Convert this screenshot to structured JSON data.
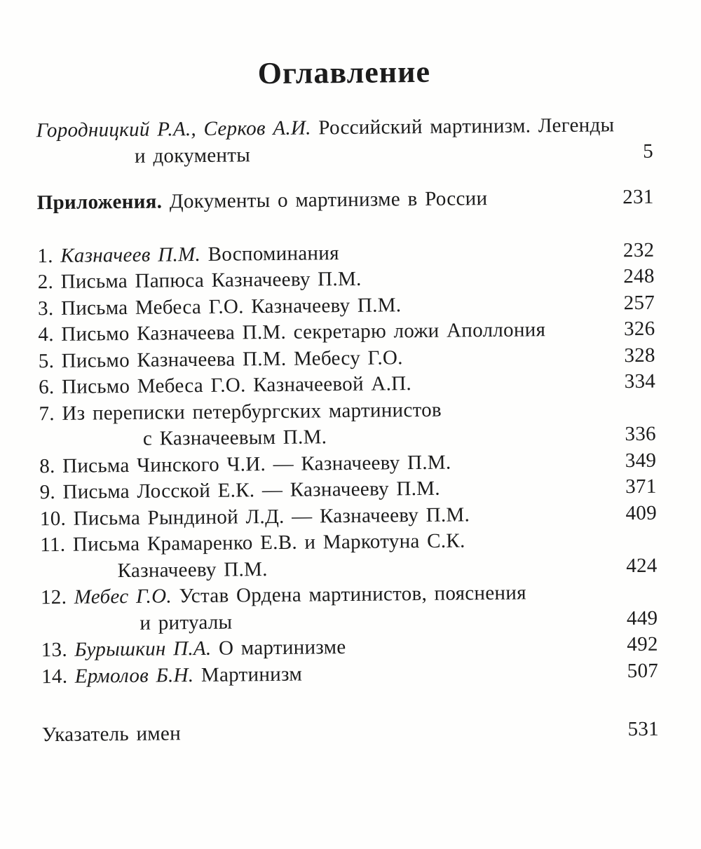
{
  "colors": {
    "ink": "#1c1c1c",
    "paper": "#fefefd"
  },
  "toc": {
    "title": "Оглавление",
    "entries": [
      {
        "lines": [
          {
            "segments": [
              {
                "t": "Городницкий Р.А., Серков А.И.",
                "s": "i"
              },
              {
                "t": " Российский мартинизм. Легенды",
                "s": "n"
              }
            ],
            "indent": 0,
            "page": ""
          },
          {
            "segments": [
              {
                "t": "и документы",
                "s": "n"
              }
            ],
            "indent": 140,
            "page": "5"
          }
        ]
      },
      {
        "lines": [
          {
            "segments": [
              {
                "t": "Приложения.",
                "s": "b"
              },
              {
                "t": " Документы о мартинизме в России",
                "s": "n"
              }
            ],
            "indent": 0,
            "page": "231"
          }
        ]
      },
      {
        "lines": [
          {
            "segments": [
              {
                "t": "1. ",
                "s": "n"
              },
              {
                "t": "Казначеев П.М.",
                "s": "i"
              },
              {
                "t": " Воспоминания",
                "s": "n"
              }
            ],
            "indent": 0,
            "page": "232"
          }
        ]
      },
      {
        "lines": [
          {
            "segments": [
              {
                "t": "2. Письма Папюса Казначееву П.М.",
                "s": "n"
              }
            ],
            "indent": 0,
            "page": "248"
          }
        ]
      },
      {
        "lines": [
          {
            "segments": [
              {
                "t": "3. Письма Мебеса Г.О. Казначееву П.М.",
                "s": "n"
              }
            ],
            "indent": 0,
            "page": "257"
          }
        ]
      },
      {
        "lines": [
          {
            "segments": [
              {
                "t": "4. Письмо Казначеева П.М. секретарю ложи Аполлония",
                "s": "n"
              }
            ],
            "indent": 0,
            "page": "326"
          }
        ]
      },
      {
        "lines": [
          {
            "segments": [
              {
                "t": "5. Письмо Казначеева П.М. Мебесу Г.О.",
                "s": "n"
              }
            ],
            "indent": 0,
            "page": "328"
          }
        ]
      },
      {
        "lines": [
          {
            "segments": [
              {
                "t": "6. Письмо Мебеса Г.О. Казначеевой А.П.",
                "s": "n"
              }
            ],
            "indent": 0,
            "page": "334"
          }
        ]
      },
      {
        "lines": [
          {
            "segments": [
              {
                "t": "7. Из переписки петербургских мартинистов",
                "s": "n"
              }
            ],
            "indent": 0,
            "page": ""
          },
          {
            "segments": [
              {
                "t": "с Казначеевым П.М.",
                "s": "n"
              }
            ],
            "indent": 148,
            "page": "336"
          }
        ]
      },
      {
        "lines": [
          {
            "segments": [
              {
                "t": "8. Письма Чинского Ч.И. — Казначееву П.М.",
                "s": "n"
              }
            ],
            "indent": 0,
            "page": "349"
          }
        ]
      },
      {
        "lines": [
          {
            "segments": [
              {
                "t": "9. Письма Лосской Е.К. — Казначееву П.М.",
                "s": "n"
              }
            ],
            "indent": 0,
            "page": "371"
          }
        ]
      },
      {
        "lines": [
          {
            "segments": [
              {
                "t": "10. Письма Рындиной Л.Д. — Казначееву П.М.",
                "s": "n"
              }
            ],
            "indent": 0,
            "page": "409"
          }
        ]
      },
      {
        "lines": [
          {
            "segments": [
              {
                "t": "11. Письма Крамаренко Е.В. и Маркотуна С.К.",
                "s": "n"
              }
            ],
            "indent": 0,
            "page": ""
          },
          {
            "segments": [
              {
                "t": "Казначееву П.М.",
                "s": "n"
              }
            ],
            "indent": 110,
            "page": "424"
          }
        ]
      },
      {
        "lines": [
          {
            "segments": [
              {
                "t": "12. ",
                "s": "n"
              },
              {
                "t": "Мебес Г.О.",
                "s": "i"
              },
              {
                "t": " Устав Ордена мартинистов, пояснения",
                "s": "n"
              }
            ],
            "indent": 0,
            "page": ""
          },
          {
            "segments": [
              {
                "t": "и ритуалы",
                "s": "n"
              }
            ],
            "indent": 141,
            "page": "449"
          }
        ]
      },
      {
        "lines": [
          {
            "segments": [
              {
                "t": "13. ",
                "s": "n"
              },
              {
                "t": "Бурышкин П.А.",
                "s": "i"
              },
              {
                "t": " О мартинизме",
                "s": "n"
              }
            ],
            "indent": 0,
            "page": "492"
          }
        ]
      },
      {
        "lines": [
          {
            "segments": [
              {
                "t": "14. ",
                "s": "n"
              },
              {
                "t": "Ермолов Б.Н.",
                "s": "i"
              },
              {
                "t": " Мартинизм",
                "s": "n"
              }
            ],
            "indent": 0,
            "page": "507"
          }
        ]
      },
      {
        "lines": [
          {
            "segments": [
              {
                "t": "Указатель имен",
                "s": "n"
              }
            ],
            "indent": 0,
            "page": "531"
          }
        ]
      }
    ]
  }
}
